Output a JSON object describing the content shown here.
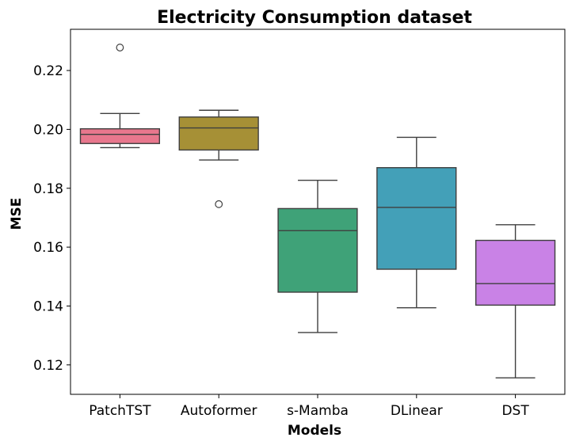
{
  "chart_data": {
    "type": "box",
    "title": "Electricity Consumption dataset",
    "xlabel": "Models",
    "ylabel": "MSE",
    "ylim": [
      0.11,
      0.234
    ],
    "yticks": [
      "0.12",
      "0.14",
      "0.16",
      "0.18",
      "0.20",
      "0.22"
    ],
    "grid": false,
    "categories": [
      "PatchTST",
      "Autoformer",
      "s-Mamba",
      "DLinear",
      "DST"
    ],
    "colors": [
      "#e8778d",
      "#a69036",
      "#3fa278",
      "#43a0b8",
      "#c982e6"
    ],
    "boxes": [
      {
        "name": "PatchTST",
        "whisker_low": 0.1938,
        "q1": 0.1952,
        "median": 0.1983,
        "q3": 0.2002,
        "whisker_high": 0.2054,
        "outliers": [
          0.2278
        ]
      },
      {
        "name": "Autoformer",
        "whisker_low": 0.1896,
        "q1": 0.193,
        "median": 0.2005,
        "q3": 0.2042,
        "whisker_high": 0.2065,
        "outliers": [
          0.1746
        ]
      },
      {
        "name": "s-Mamba",
        "whisker_low": 0.131,
        "q1": 0.1447,
        "median": 0.1656,
        "q3": 0.1731,
        "whisker_high": 0.1827,
        "outliers": []
      },
      {
        "name": "DLinear",
        "whisker_low": 0.1394,
        "q1": 0.1525,
        "median": 0.1735,
        "q3": 0.187,
        "whisker_high": 0.1973,
        "outliers": []
      },
      {
        "name": "DST",
        "whisker_low": 0.1156,
        "q1": 0.1403,
        "median": 0.1476,
        "q3": 0.1623,
        "whisker_high": 0.1676,
        "outliers": []
      }
    ]
  }
}
